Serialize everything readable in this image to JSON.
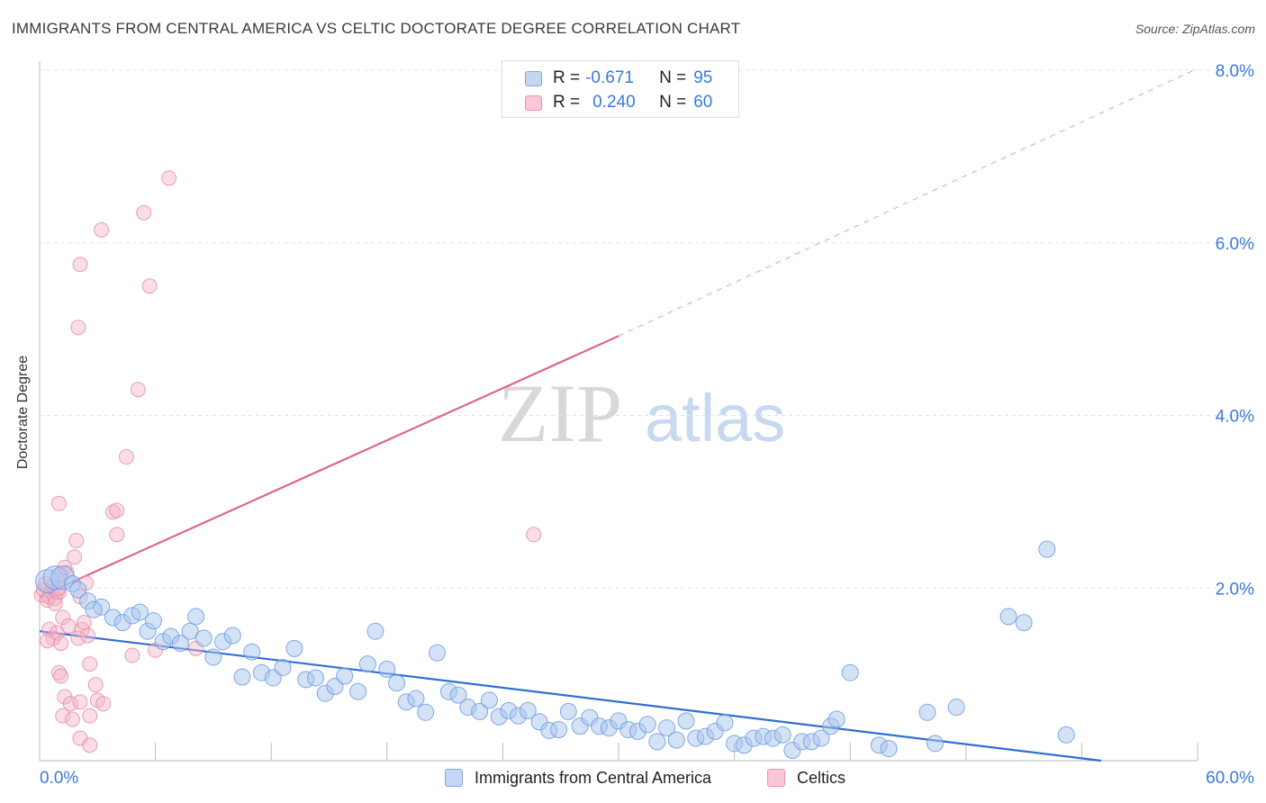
{
  "header": {
    "title": "IMMIGRANTS FROM CENTRAL AMERICA VS CELTIC DOCTORATE DEGREE CORRELATION CHART",
    "source": "Source: ZipAtlas.com"
  },
  "watermark": {
    "part1": "ZIP",
    "part2": "atlas"
  },
  "legend_top": {
    "rows": [
      {
        "r_label": "R =",
        "r_value": "-0.671",
        "n_label": "N =",
        "n_value": "95",
        "color": "#a9c6ee"
      },
      {
        "r_label": "R =",
        "r_value": "0.240",
        "n_label": "N =",
        "n_value": "60",
        "color": "#f4b3c8"
      }
    ]
  },
  "colors": {
    "blue_fill": "#a9c6ee",
    "blue_stroke": "#6b9be0",
    "blue_line": "#2f6fd1",
    "pink_fill": "#f4b3c8",
    "pink_stroke": "#e58aa7",
    "pink_line": "#e0648e",
    "grid": "#dde3ea",
    "tick_label": "#3b78d8"
  },
  "chart_data": {
    "type": "scatter",
    "title": "IMMIGRANTS FROM CENTRAL AMERICA VS CELTIC DOCTORATE DEGREE CORRELATION CHART",
    "xlabel": "",
    "ylabel": "Doctorate Degree",
    "xlim": [
      0,
      60
    ],
    "ylim": [
      0,
      8.0
    ],
    "x_tick_labels": [
      "0.0%",
      "60.0%"
    ],
    "y_tick_labels": [
      "2.0%",
      "4.0%",
      "6.0%",
      "8.0%"
    ],
    "y_ticks": [
      2.0,
      4.0,
      6.0,
      8.0
    ],
    "grid": "horizontal dashed",
    "legend_position": "top-center and bottom",
    "series": [
      {
        "name": "Immigrants from Central America",
        "color": "#a9c6ee",
        "trend": {
          "x0": 0,
          "y0": 1.5,
          "x1": 55,
          "y1": 0.0,
          "dashed_extension": false
        },
        "points": [
          [
            0.4,
            2.08
          ],
          [
            0.8,
            2.12
          ],
          [
            1.2,
            2.12
          ],
          [
            1.7,
            2.05
          ],
          [
            2.0,
            1.98
          ],
          [
            2.5,
            1.85
          ],
          [
            3.2,
            1.78
          ],
          [
            3.8,
            1.66
          ],
          [
            4.3,
            1.6
          ],
          [
            4.8,
            1.68
          ],
          [
            5.2,
            1.72
          ],
          [
            5.6,
            1.5
          ],
          [
            5.9,
            1.62
          ],
          [
            6.4,
            1.38
          ],
          [
            6.8,
            1.44
          ],
          [
            7.3,
            1.36
          ],
          [
            7.8,
            1.5
          ],
          [
            8.1,
            1.67
          ],
          [
            8.5,
            1.42
          ],
          [
            9.0,
            1.2
          ],
          [
            9.5,
            1.38
          ],
          [
            10.0,
            1.45
          ],
          [
            10.5,
            0.97
          ],
          [
            11.0,
            1.26
          ],
          [
            11.5,
            1.02
          ],
          [
            12.1,
            0.96
          ],
          [
            12.6,
            1.08
          ],
          [
            13.2,
            1.3
          ],
          [
            13.8,
            0.94
          ],
          [
            14.3,
            0.96
          ],
          [
            14.8,
            0.78
          ],
          [
            15.3,
            0.86
          ],
          [
            15.8,
            0.98
          ],
          [
            16.5,
            0.8
          ],
          [
            17.0,
            1.12
          ],
          [
            17.4,
            1.5
          ],
          [
            18.0,
            1.06
          ],
          [
            18.5,
            0.9
          ],
          [
            19.0,
            0.68
          ],
          [
            19.5,
            0.72
          ],
          [
            20.0,
            0.56
          ],
          [
            20.6,
            1.25
          ],
          [
            21.2,
            0.8
          ],
          [
            21.7,
            0.76
          ],
          [
            22.2,
            0.62
          ],
          [
            22.8,
            0.57
          ],
          [
            23.3,
            0.7
          ],
          [
            23.8,
            0.51
          ],
          [
            24.3,
            0.58
          ],
          [
            24.8,
            0.52
          ],
          [
            25.3,
            0.58
          ],
          [
            25.9,
            0.45
          ],
          [
            26.4,
            0.35
          ],
          [
            26.9,
            0.36
          ],
          [
            27.4,
            0.57
          ],
          [
            28.0,
            0.4
          ],
          [
            28.5,
            0.5
          ],
          [
            29.0,
            0.4
          ],
          [
            29.5,
            0.38
          ],
          [
            30.0,
            0.46
          ],
          [
            30.5,
            0.36
          ],
          [
            31.0,
            0.34
          ],
          [
            31.5,
            0.42
          ],
          [
            32.0,
            0.22
          ],
          [
            32.5,
            0.38
          ],
          [
            33.0,
            0.24
          ],
          [
            33.5,
            0.46
          ],
          [
            34.0,
            0.26
          ],
          [
            34.5,
            0.28
          ],
          [
            35.0,
            0.34
          ],
          [
            35.5,
            0.44
          ],
          [
            36.0,
            0.2
          ],
          [
            36.5,
            0.18
          ],
          [
            37.0,
            0.26
          ],
          [
            37.5,
            0.28
          ],
          [
            38.0,
            0.26
          ],
          [
            38.5,
            0.3
          ],
          [
            39.0,
            0.12
          ],
          [
            39.5,
            0.22
          ],
          [
            40.0,
            0.22
          ],
          [
            40.5,
            0.26
          ],
          [
            41.0,
            0.4
          ],
          [
            41.3,
            0.48
          ],
          [
            42.0,
            1.02
          ],
          [
            43.5,
            0.18
          ],
          [
            44.0,
            0.14
          ],
          [
            46.0,
            0.56
          ],
          [
            46.4,
            0.2
          ],
          [
            47.5,
            0.62
          ],
          [
            50.2,
            1.67
          ],
          [
            51.0,
            1.6
          ],
          [
            52.2,
            2.45
          ],
          [
            53.2,
            0.3
          ],
          [
            2.8,
            1.75
          ]
        ]
      },
      {
        "name": "Celtics",
        "color": "#f4b3c8",
        "trend": {
          "x0": 0,
          "y0": 1.9,
          "x1": 30,
          "y1": 4.92,
          "dashed_to": [
            60,
            8.02
          ]
        },
        "points": [
          [
            0.1,
            1.92
          ],
          [
            0.2,
            1.98
          ],
          [
            0.3,
            2.05
          ],
          [
            0.4,
            1.86
          ],
          [
            0.5,
            1.9
          ],
          [
            0.6,
            1.95
          ],
          [
            0.7,
            2.02
          ],
          [
            0.8,
            1.88
          ],
          [
            0.9,
            1.96
          ],
          [
            1.0,
            1.95
          ],
          [
            0.5,
            1.52
          ],
          [
            0.7,
            1.42
          ],
          [
            0.9,
            1.48
          ],
          [
            1.1,
            1.36
          ],
          [
            0.4,
            1.39
          ],
          [
            0.8,
            1.82
          ],
          [
            1.2,
            1.66
          ],
          [
            1.0,
            2.0
          ],
          [
            1.1,
            2.16
          ],
          [
            1.4,
            2.18
          ],
          [
            1.3,
            2.24
          ],
          [
            1.8,
            2.36
          ],
          [
            1.9,
            2.55
          ],
          [
            1.0,
            2.98
          ],
          [
            1.5,
            1.56
          ],
          [
            2.2,
            1.52
          ],
          [
            2.0,
            1.42
          ],
          [
            2.5,
            1.45
          ],
          [
            2.3,
            1.6
          ],
          [
            2.6,
            1.12
          ],
          [
            2.9,
            0.88
          ],
          [
            3.0,
            0.7
          ],
          [
            1.0,
            1.02
          ],
          [
            1.3,
            0.74
          ],
          [
            1.6,
            0.66
          ],
          [
            2.1,
            0.68
          ],
          [
            1.2,
            0.52
          ],
          [
            1.7,
            0.48
          ],
          [
            2.6,
            0.52
          ],
          [
            3.3,
            0.66
          ],
          [
            2.1,
            0.26
          ],
          [
            2.6,
            0.18
          ],
          [
            2.1,
            1.9
          ],
          [
            2.4,
            2.06
          ],
          [
            3.8,
            2.88
          ],
          [
            4.0,
            2.9
          ],
          [
            4.0,
            2.62
          ],
          [
            4.5,
            3.52
          ],
          [
            4.8,
            1.22
          ],
          [
            5.1,
            4.3
          ],
          [
            5.4,
            6.35
          ],
          [
            5.7,
            5.5
          ],
          [
            2.0,
            5.02
          ],
          [
            2.1,
            5.75
          ],
          [
            3.2,
            6.15
          ],
          [
            6.7,
            6.75
          ],
          [
            6.0,
            1.28
          ],
          [
            8.1,
            1.3
          ],
          [
            25.6,
            2.62
          ],
          [
            1.1,
            0.98
          ]
        ]
      }
    ]
  },
  "legend_bottom": {
    "items": [
      {
        "label": "Immigrants from Central America",
        "color": "#a9c6ee"
      },
      {
        "label": "Celtics",
        "color": "#f4b3c8"
      }
    ]
  }
}
